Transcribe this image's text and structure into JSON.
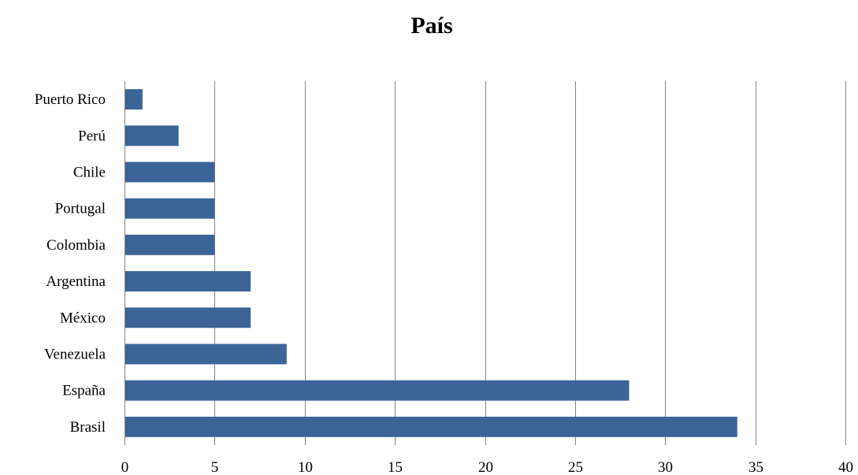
{
  "chart_data": {
    "type": "bar",
    "orientation": "horizontal",
    "title": "País",
    "xlabel": "",
    "ylabel": "",
    "categories": [
      "Puerto Rico",
      "Perú",
      "Chile",
      "Portugal",
      "Colombia",
      "Argentina",
      "México",
      "Venezuela",
      "España",
      "Brasil"
    ],
    "values": [
      1,
      3,
      5,
      5,
      5,
      7,
      7,
      9,
      28,
      34
    ],
    "xlim": [
      0,
      40
    ],
    "xticks": [
      "0",
      "5",
      "10",
      "15",
      "20",
      "25",
      "30",
      "35",
      "40"
    ],
    "grid": true,
    "legend": "none",
    "bar_color": "#3c6497",
    "grid_color": "#868686"
  }
}
